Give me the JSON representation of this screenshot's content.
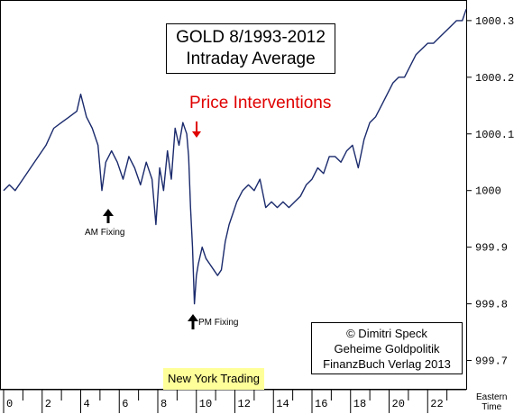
{
  "title_line1": "GOLD 8/1993-2012",
  "title_line2": "Intraday Average",
  "intervention_label": "Price Interventions",
  "am_fixing_label": "AM Fixing",
  "pm_fixing_label": "PM Fixing",
  "ny_trading_label": "New York Trading",
  "credit": {
    "line1": "© Dimitri Speck",
    "line2": "Geheime Goldpolitik",
    "line3": "FinanzBuch Verlag 2013"
  },
  "x_axis_label_line1": "Eastern",
  "x_axis_label_line2": "Time",
  "colors": {
    "series": "#1a2a6c",
    "intervention": "#e00000",
    "ny_highlight": "#ffff99"
  },
  "chart_data": {
    "type": "line",
    "xlabel": "Eastern Time",
    "ylabel": "",
    "xlim": [
      0,
      24
    ],
    "ylim": [
      999.65,
      1000.33
    ],
    "x_ticks": [
      0,
      2,
      4,
      6,
      8,
      10,
      12,
      14,
      16,
      18,
      20,
      22
    ],
    "y_ticks": [
      999.7,
      999.8,
      999.9,
      1000,
      1000.1,
      1000.2,
      1000.3
    ],
    "y_tick_labels": [
      "999.7",
      "999.8",
      "999.9",
      "1000",
      "1000.1",
      "1000.2",
      "1000.3"
    ],
    "grid": false,
    "series": [
      {
        "x": [
          0,
          0.3,
          0.6,
          1.0,
          1.4,
          1.8,
          2.2,
          2.6,
          3.0,
          3.4,
          3.8,
          4.0,
          4.3,
          4.6,
          4.9,
          5.1,
          5.3,
          5.6,
          5.9,
          6.2,
          6.5,
          6.8,
          7.1,
          7.4,
          7.7,
          7.9,
          8.1,
          8.3,
          8.5,
          8.7,
          8.9,
          9.1,
          9.3,
          9.5,
          9.6,
          9.7,
          9.8,
          9.9,
          10.0,
          10.1,
          10.3,
          10.5,
          10.7,
          10.9,
          11.1,
          11.3,
          11.5,
          11.7,
          11.9,
          12.1,
          12.4,
          12.7,
          13.0,
          13.3,
          13.6,
          13.9,
          14.2,
          14.5,
          14.8,
          15.1,
          15.4,
          15.7,
          16.0,
          16.3,
          16.6,
          16.9,
          17.2,
          17.5,
          17.8,
          18.1,
          18.4,
          18.7,
          19.0,
          19.3,
          19.6,
          19.9,
          20.2,
          20.5,
          20.8,
          21.1,
          21.4,
          21.7,
          22.0,
          22.3,
          22.6,
          22.9,
          23.2,
          23.5,
          23.8,
          24.0
        ],
        "y": [
          1000.0,
          1000.01,
          1000.0,
          1000.02,
          1000.04,
          1000.06,
          1000.08,
          1000.11,
          1000.12,
          1000.13,
          1000.14,
          1000.17,
          1000.13,
          1000.11,
          1000.08,
          1000.0,
          1000.05,
          1000.07,
          1000.05,
          1000.02,
          1000.06,
          1000.04,
          1000.01,
          1000.05,
          1000.02,
          999.94,
          1000.04,
          1000.0,
          1000.07,
          1000.02,
          1000.11,
          1000.08,
          1000.12,
          1000.1,
          1000.06,
          999.97,
          999.9,
          999.8,
          999.85,
          999.87,
          999.9,
          999.88,
          999.87,
          999.86,
          999.85,
          999.86,
          999.91,
          999.94,
          999.96,
          999.98,
          1000.0,
          1000.01,
          1000.0,
          1000.02,
          999.97,
          999.98,
          999.97,
          999.98,
          999.97,
          999.98,
          999.99,
          1000.01,
          1000.02,
          1000.04,
          1000.03,
          1000.06,
          1000.06,
          1000.05,
          1000.07,
          1000.08,
          1000.04,
          1000.09,
          1000.12,
          1000.13,
          1000.15,
          1000.17,
          1000.19,
          1000.2,
          1000.2,
          1000.22,
          1000.24,
          1000.25,
          1000.26,
          1000.26,
          1000.27,
          1000.28,
          1000.29,
          1000.3,
          1000.3,
          1000.32
        ]
      }
    ]
  }
}
